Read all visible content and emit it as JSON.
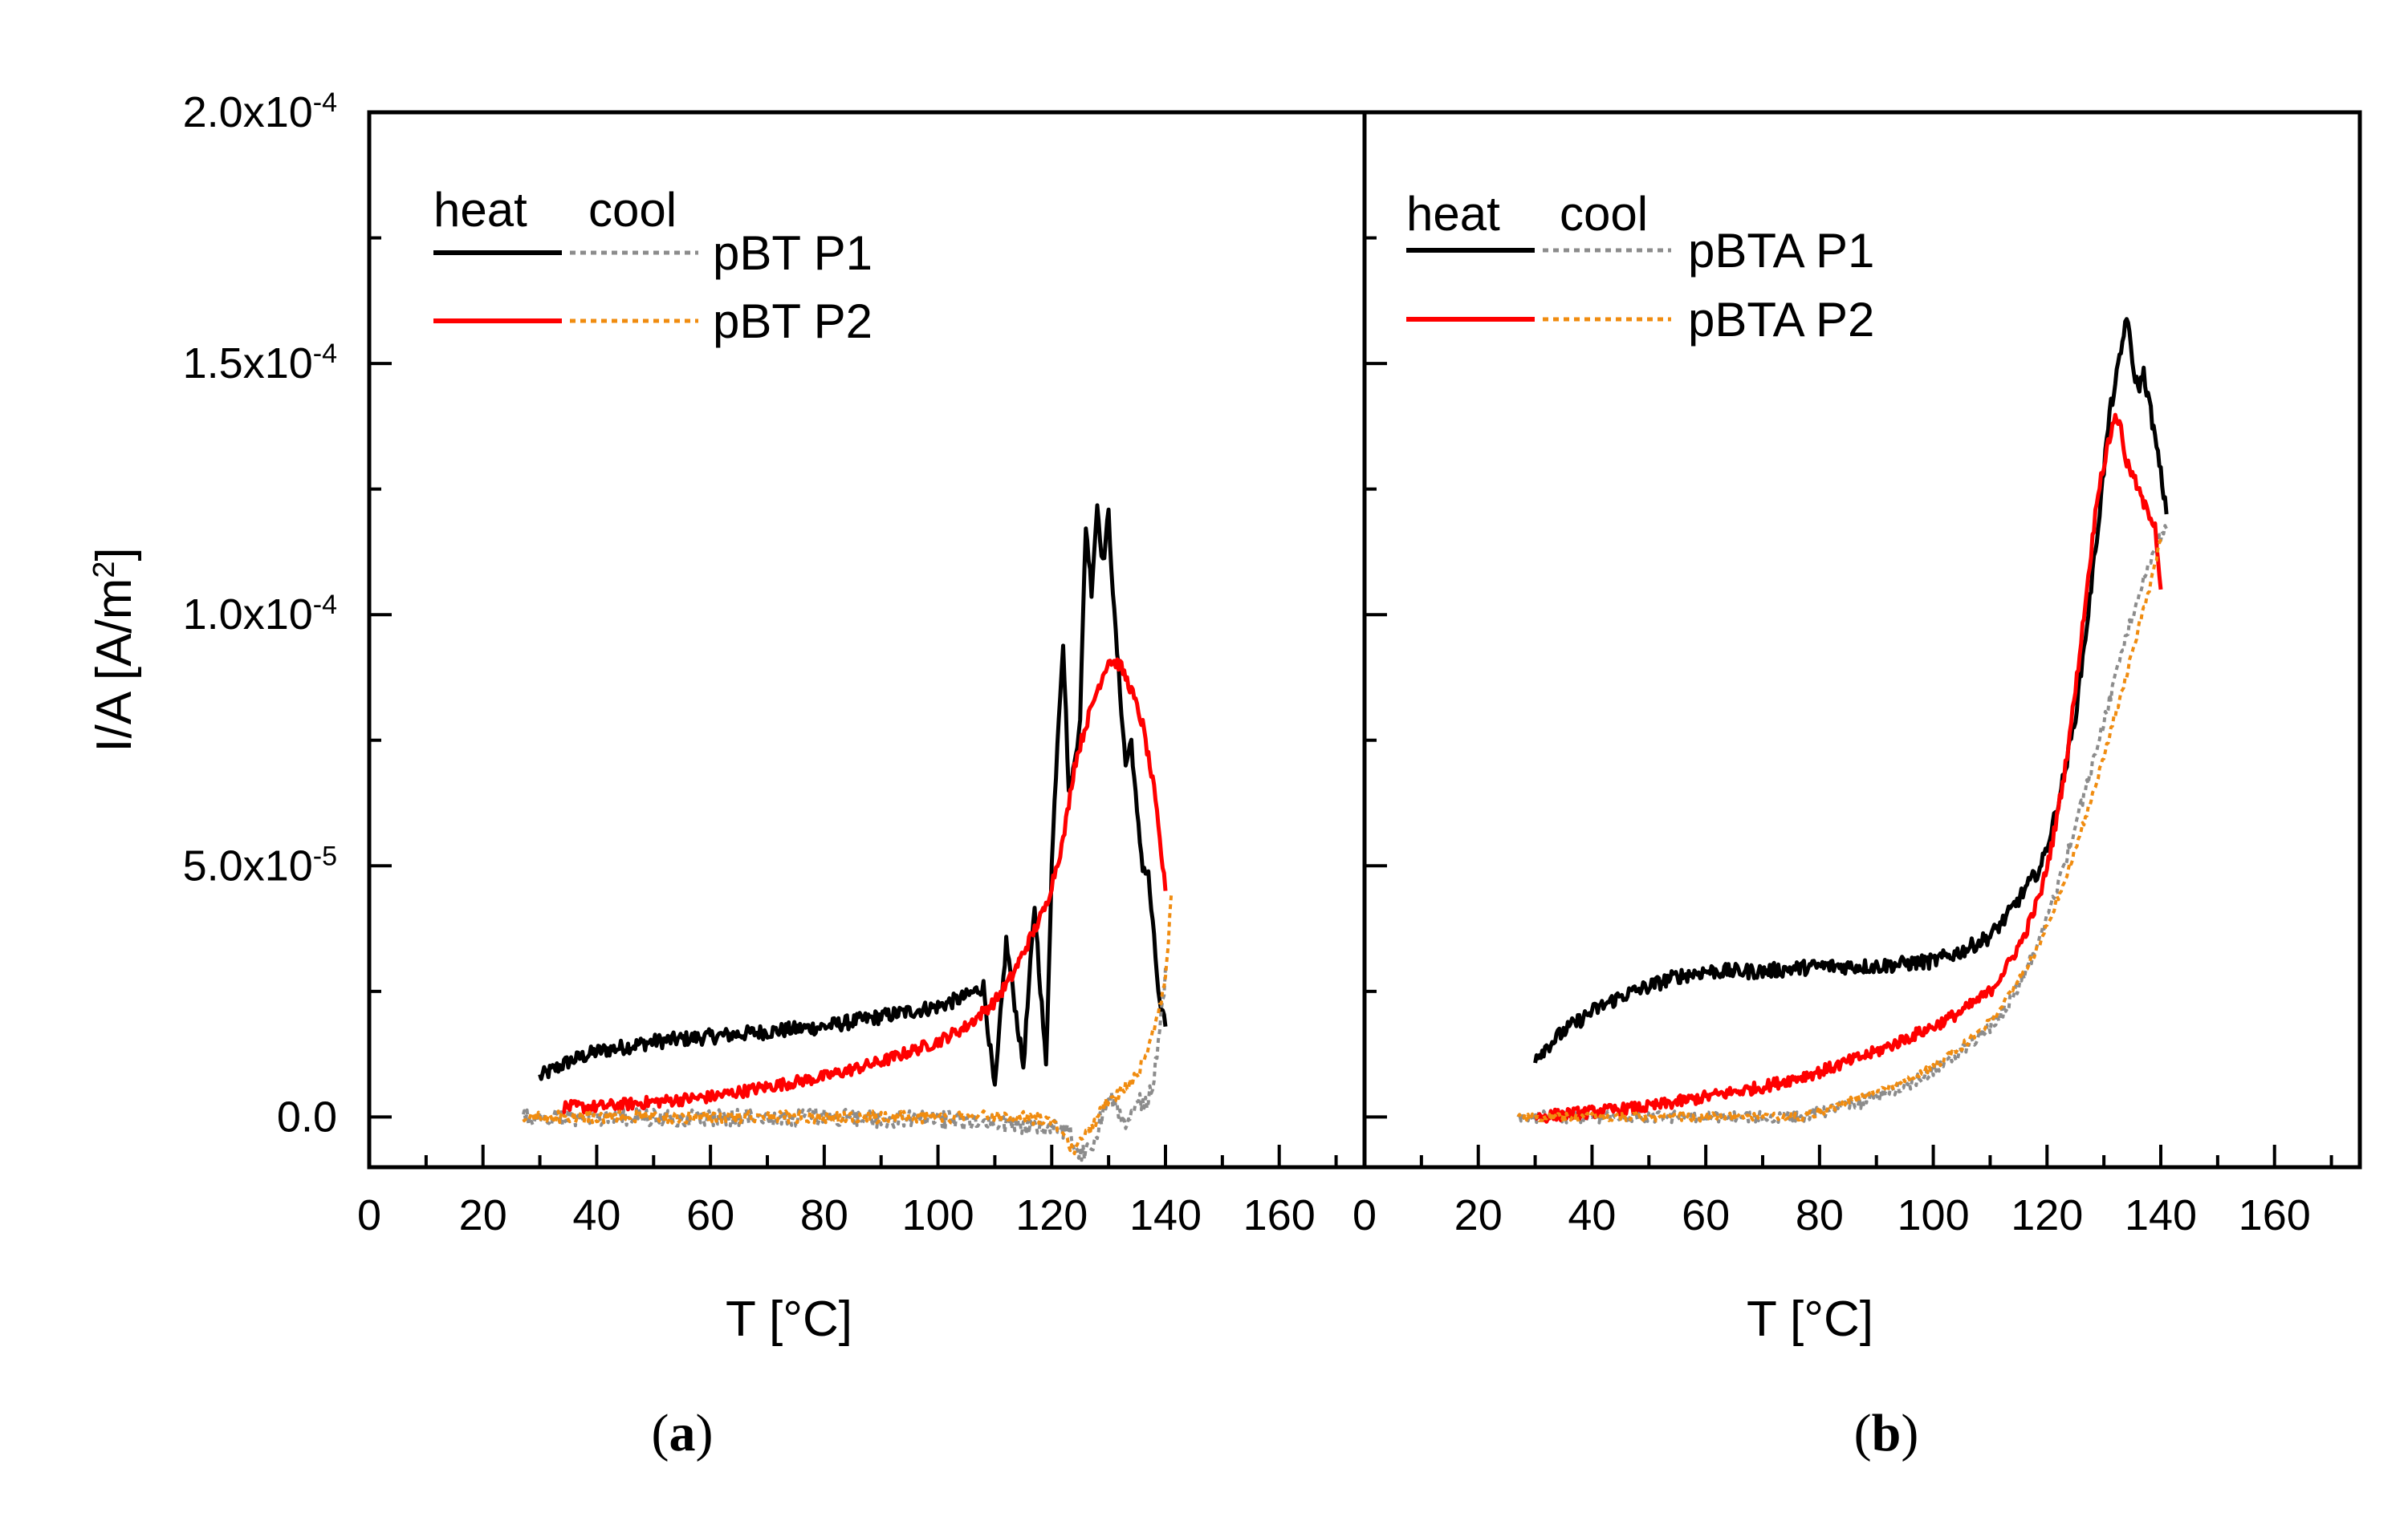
{
  "chart_data": {
    "type": "line",
    "panels": [
      {
        "id": "a",
        "panel_label_open": "(",
        "panel_label_letter": "a",
        "panel_label_close": ")",
        "xlabel": "T [°C]",
        "ylabel_main": "I/A [A/m",
        "ylabel_sup": "2",
        "ylabel_close": "]",
        "xlim": [
          0,
          175
        ],
        "ylim": [
          -1e-05,
          0.0002
        ],
        "xticks": [
          {
            "v": 0,
            "label": "0"
          },
          {
            "v": 20,
            "label": "20"
          },
          {
            "v": 40,
            "label": "40"
          },
          {
            "v": 60,
            "label": "60"
          },
          {
            "v": 80,
            "label": "80"
          },
          {
            "v": 100,
            "label": "100"
          },
          {
            "v": 120,
            "label": "120"
          },
          {
            "v": 140,
            "label": "140"
          },
          {
            "v": 160,
            "label": "160"
          }
        ],
        "yticks": [
          {
            "v": 0,
            "base": "0.0",
            "exp": ""
          },
          {
            "v": 5e-05,
            "base": "5.0x10",
            "exp": "-5"
          },
          {
            "v": 0.0001,
            "base": "1.0x10",
            "exp": "-4"
          },
          {
            "v": 0.00015,
            "base": "1.5x10",
            "exp": "-4"
          },
          {
            "v": 0.0002,
            "base": "2.0x10",
            "exp": "-4"
          }
        ],
        "legend_heat": "heat",
        "legend_cool": "cool",
        "legend_labels": [
          "pBT P1",
          "pBT P2"
        ],
        "series": [
          {
            "name": "pBT P1 heat",
            "color": "#000000",
            "style": "solid",
            "noise": 1.5e-06,
            "x": [
              30,
              35,
              40,
              50,
              60,
              70,
              80,
              90,
              100,
              105,
              108,
              110,
              112,
              115,
              117,
              119,
              120,
              121,
              122,
              123,
              124,
              125,
              126,
              127,
              128,
              129,
              130,
              131,
              132,
              133,
              134,
              135,
              136,
              137,
              138,
              139,
              140
            ],
            "y": [
              8e-06,
              1.1e-05,
              1.3e-05,
              1.5e-05,
              1.6e-05,
              1.7e-05,
              1.8e-05,
              2e-05,
              2.2e-05,
              2.4e-05,
              2.6e-05,
              5e-06,
              3.5e-05,
              1e-05,
              4.2e-05,
              1e-05,
              5e-05,
              7.5e-05,
              9.5e-05,
              6.5e-05,
              7e-05,
              8e-05,
              0.000118,
              0.000105,
              0.000122,
              0.00011,
              0.00012,
              0.0001,
              8.5e-05,
              7e-05,
              7.5e-05,
              6e-05,
              5e-05,
              4.8e-05,
              3.5e-05,
              2.2e-05,
              1.8e-05
            ]
          },
          {
            "name": "pBT P1 cool",
            "color": "#8c8c8c",
            "style": "dotted",
            "noise": 1.8e-06,
            "x": [
              140,
              139,
              138,
              137,
              136,
              135,
              133,
              131,
              129,
              127,
              125,
              123,
              120,
              115,
              110,
              105,
              100,
              90,
              80,
              70,
              60,
              50,
              40,
              30,
              27
            ],
            "y": [
              2.8e-05,
              1.8e-05,
              8e-06,
              4e-06,
              2e-06,
              4e-06,
              -3e-06,
              4e-06,
              1e-06,
              -6e-06,
              -7e-06,
              -3e-06,
              -2e-06,
              -2e-06,
              -1e-06,
              -1e-06,
              -5e-07,
              -5e-07,
              0.0,
              0.0,
              0.0,
              0.0,
              0.0,
              0.0,
              0.0
            ]
          },
          {
            "name": "pBT P2 heat",
            "color": "#ff0000",
            "style": "solid",
            "noise": 1.2e-06,
            "x": [
              34,
              40,
              50,
              60,
              70,
              80,
              90,
              100,
              105,
              110,
              113,
              116,
              119,
              122,
              124,
              126,
              128,
              130,
              132,
              134,
              136,
              138,
              139,
              140
            ],
            "y": [
              2e-06,
              2e-06,
              3e-06,
              4e-06,
              6e-06,
              8e-06,
              1.1e-05,
              1.5e-05,
              1.8e-05,
              2.3e-05,
              2.8e-05,
              3.5e-05,
              4.2e-05,
              5.5e-05,
              7e-05,
              7.8e-05,
              8.5e-05,
              9.1e-05,
              9e-05,
              8.5e-05,
              7.8e-05,
              6.5e-05,
              5.5e-05,
              4.5e-05
            ]
          },
          {
            "name": "pBT P2 cool",
            "color": "#f08c10",
            "style": "dotted",
            "noise": 1.2e-06,
            "x": [
              141,
              140.5,
              140,
              139,
              138,
              137,
              136,
              135,
              133,
              131,
              129,
              127,
              125,
              124,
              123,
              120,
              115,
              110,
              100,
              90,
              80,
              70,
              60,
              50,
              40,
              30,
              27
            ],
            "y": [
              4.5e-05,
              3.5e-05,
              2.8e-05,
              2.2e-05,
              1.8e-05,
              1.4e-05,
              1.1e-05,
              8e-06,
              6e-06,
              4e-06,
              2e-06,
              -2e-06,
              -5e-06,
              -7e-06,
              -5e-06,
              -1e-06,
              0.0,
              0.0,
              0.0,
              0.0,
              0.0,
              0.0,
              0.0,
              0.0,
              0.0,
              0.0,
              0.0
            ]
          }
        ]
      },
      {
        "id": "b",
        "panel_label_open": "(",
        "panel_label_letter": "b",
        "panel_label_close": ")",
        "xlabel": "T [°C]",
        "xlim": [
          0,
          175
        ],
        "ylim": [
          -1e-05,
          0.0002
        ],
        "xticks": [
          {
            "v": 0,
            "label": "0"
          },
          {
            "v": 20,
            "label": "20"
          },
          {
            "v": 40,
            "label": "40"
          },
          {
            "v": 60,
            "label": "60"
          },
          {
            "v": 80,
            "label": "80"
          },
          {
            "v": 100,
            "label": "100"
          },
          {
            "v": 120,
            "label": "120"
          },
          {
            "v": 140,
            "label": "140"
          },
          {
            "v": 160,
            "label": "160"
          }
        ],
        "legend_heat": "heat",
        "legend_cool": "cool",
        "legend_labels": [
          "pBTA P1",
          "pBTA P2"
        ],
        "series": [
          {
            "name": "pBTA P1 heat",
            "color": "#000000",
            "style": "solid",
            "noise": 1.5e-06,
            "x": [
              30,
              35,
              40,
              45,
              50,
              55,
              60,
              70,
              80,
              90,
              100,
              105,
              110,
              113,
              116,
              119,
              121,
              123,
              125,
              127,
              129,
              131,
              133,
              134,
              135,
              136,
              137,
              138,
              139,
              140,
              141
            ],
            "y": [
              1.2e-05,
              1.7e-05,
              2.1e-05,
              2.4e-05,
              2.6e-05,
              2.8e-05,
              2.9e-05,
              2.9e-05,
              3e-05,
              3e-05,
              3.1e-05,
              3.3e-05,
              3.6e-05,
              4e-05,
              4.5e-05,
              5e-05,
              5.8e-05,
              6.8e-05,
              8e-05,
              9.8e-05,
              0.000118,
              0.00014,
              0.000152,
              0.00016,
              0.00015,
              0.000145,
              0.000148,
              0.000142,
              0.000135,
              0.000128,
              0.00012
            ]
          },
          {
            "name": "pBTA P1 cool",
            "color": "#8c8c8c",
            "style": "dotted",
            "noise": 1.2e-06,
            "x": [
              141,
              139,
              137,
              135,
              133,
              131,
              129,
              127,
              125,
              123,
              121,
              119,
              117,
              115,
              113,
              110,
              105,
              100,
              95,
              90,
              85,
              80,
              77,
              70,
              60,
              50,
              40,
              30,
              27
            ],
            "y": [
              0.000118,
              0.000113,
              0.000107,
              0.0001,
              9.2e-05,
              8.3e-05,
              7.5e-05,
              6.6e-05,
              5.8e-05,
              5e-05,
              4.3e-05,
              3.6e-05,
              3.1e-05,
              2.6e-05,
              2.2e-05,
              1.8e-05,
              1.3e-05,
              9e-06,
              6e-06,
              4e-06,
              2e-06,
              1e-06,
              0.0,
              0.0,
              0.0,
              0.0,
              0.0,
              0.0,
              0.0
            ]
          },
          {
            "name": "pBTA P2 heat",
            "color": "#ff0000",
            "style": "solid",
            "noise": 1.2e-06,
            "x": [
              30,
              40,
              50,
              60,
              70,
              80,
              90,
              100,
              105,
              110,
              113,
              116,
              119,
              121,
              123,
              125,
              127,
              129,
              131,
              132,
              133,
              134,
              135,
              136,
              137,
              138,
              139,
              140
            ],
            "y": [
              0.0,
              1e-06,
              2e-06,
              4e-06,
              6e-06,
              9e-06,
              1.3e-05,
              1.8e-05,
              2.1e-05,
              2.5e-05,
              3e-05,
              3.6e-05,
              4.5e-05,
              5.5e-05,
              6.8e-05,
              8.5e-05,
              0.000105,
              0.000125,
              0.000135,
              0.00014,
              0.000137,
              0.00013,
              0.000128,
              0.000125,
              0.000122,
              0.00012,
              0.000118,
              0.000105
            ]
          },
          {
            "name": "pBTA P2 cool",
            "color": "#f08c10",
            "style": "dotted",
            "noise": 8e-07,
            "x": [
              140,
              138,
              136,
              134,
              132,
              130,
              128,
              126,
              124,
              122,
              120,
              118,
              115,
              112,
              110,
              105,
              100,
              95,
              90,
              85,
              80,
              77,
              70,
              60,
              50,
              40,
              30,
              27
            ],
            "y": [
              0.000115,
              0.000105,
              9.7e-05,
              8.8e-05,
              8e-05,
              7.2e-05,
              6.4e-05,
              5.7e-05,
              5e-05,
              4.4e-05,
              3.8e-05,
              3.3e-05,
              2.7e-05,
              2.2e-05,
              1.9e-05,
              1.4e-05,
              1e-05,
              7e-06,
              5e-06,
              3e-06,
              1e-06,
              0.0,
              0.0,
              0.0,
              0.0,
              0.0,
              0.0,
              0.0
            ]
          }
        ]
      }
    ]
  },
  "colors": {
    "heat_p1": "#000000",
    "cool_p1": "#8c8c8c",
    "heat_p2": "#ff0000",
    "cool_p2": "#f08c10"
  }
}
